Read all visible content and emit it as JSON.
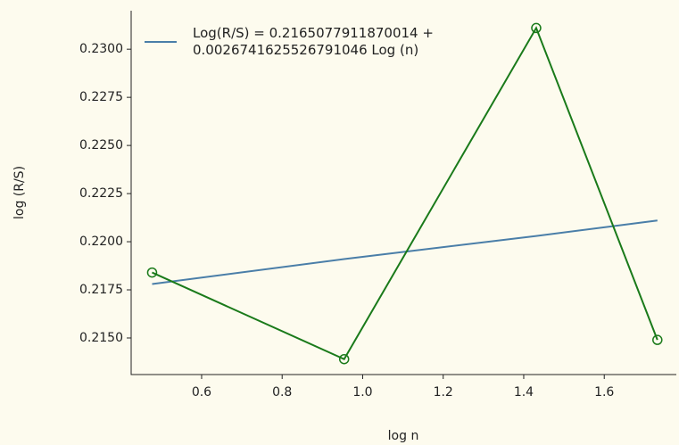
{
  "chart_data": {
    "type": "line",
    "xlabel": "log n",
    "ylabel": "log (R/S)",
    "x": [
      0.477,
      0.954,
      1.431,
      1.732
    ],
    "series": [
      {
        "name": "Log(R/S) = 0.2165077911870014 + 0.0026741625526791046 Log (n)",
        "color": "#4a7ea8",
        "values": [
          0.2178,
          0.2191,
          0.2203,
          0.2211
        ]
      },
      {
        "color": "#1a7a1a",
        "marker": "o",
        "values": [
          0.2184,
          0.2139,
          0.2311,
          0.2149
        ]
      }
    ],
    "xlim": [
      0.425,
      1.779
    ],
    "xticks": [
      {
        "value": 0.6,
        "label": "0.6"
      },
      {
        "value": 0.8,
        "label": "0.8"
      },
      {
        "value": 1.0,
        "label": "1.0"
      },
      {
        "value": 1.2,
        "label": "1.2"
      },
      {
        "value": 1.4,
        "label": "1.4"
      },
      {
        "value": 1.6,
        "label": "1.6"
      }
    ],
    "ylim": [
      0.2131,
      0.232
    ],
    "yticks": [
      {
        "value": 0.215,
        "label": "0.2150"
      },
      {
        "value": 0.2175,
        "label": "0.2175"
      },
      {
        "value": 0.22,
        "label": "0.2200"
      },
      {
        "value": 0.2225,
        "label": "0.2225"
      },
      {
        "value": 0.225,
        "label": "0.2250"
      },
      {
        "value": 0.2275,
        "label": "0.2275"
      },
      {
        "value": 0.23,
        "label": "0.2300"
      }
    ],
    "grid": false,
    "legend": "upper left"
  }
}
